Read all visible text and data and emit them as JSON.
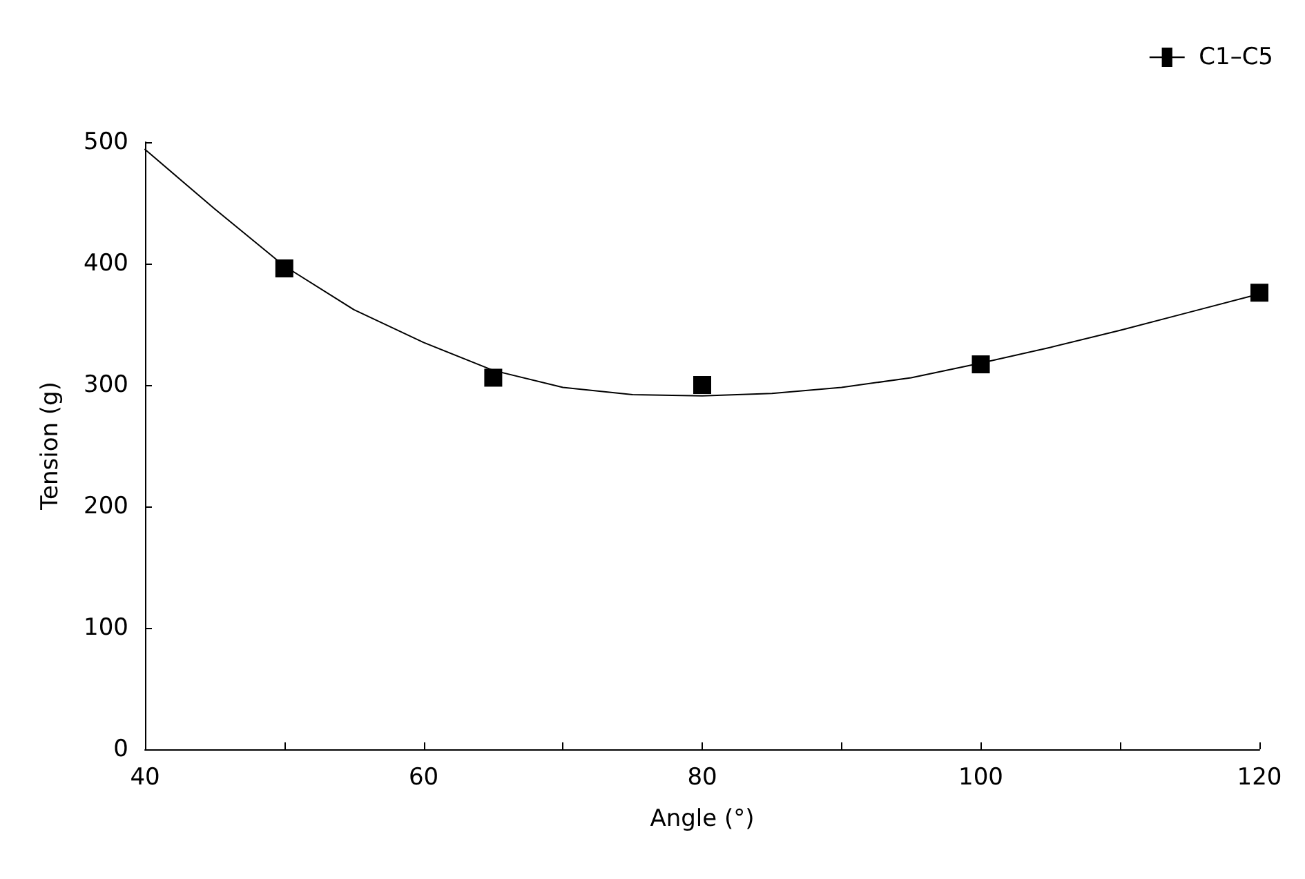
{
  "chart_data": {
    "type": "scatter",
    "xlabel": "Angle (°)",
    "ylabel": "Tension (g)",
    "xlim": [
      40,
      120
    ],
    "xticks": [
      40,
      {
        "value": 50,
        "label": null
      },
      60,
      {
        "value": 70,
        "label": null
      },
      80,
      {
        "value": 90,
        "label": null
      },
      100,
      {
        "value": 110,
        "label": null
      },
      120
    ],
    "ylim": [
      0,
      500
    ],
    "yticks": [
      0,
      100,
      200,
      300,
      400,
      500
    ],
    "grid": false,
    "legend": "top right",
    "series": [
      {
        "name": "C1–C5",
        "marker": "square",
        "color": "#000000",
        "x": [
          50,
          65,
          80,
          100,
          120
        ],
        "values": [
          396,
          306,
          300,
          317,
          376
        ]
      },
      {
        "type": "line",
        "marker": "none",
        "line_style": "solid",
        "color": "#000000",
        "x": [
          40,
          45,
          50,
          55,
          60,
          65,
          70,
          75,
          80,
          85,
          90,
          95,
          100,
          105,
          110,
          115,
          120
        ],
        "values": [
          494,
          445,
          398,
          362,
          335,
          312,
          298,
          292,
          291,
          293,
          298,
          306,
          318,
          331,
          345,
          360,
          375
        ]
      }
    ]
  }
}
